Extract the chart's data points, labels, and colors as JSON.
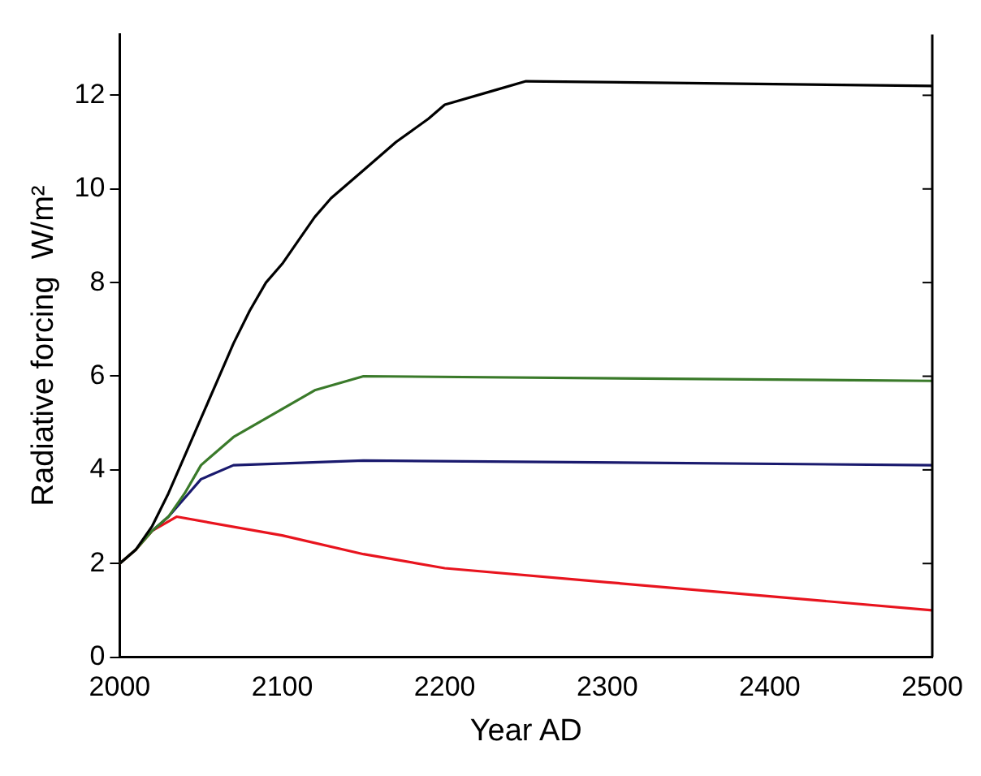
{
  "chart_data": {
    "type": "line",
    "xlabel": "Year AD",
    "ylabel": "Radiative forcing  W/m²",
    "xlim": [
      2000,
      2500
    ],
    "xticks": [
      2000,
      2100,
      2200,
      2300,
      2400,
      2500
    ],
    "ylim": [
      0,
      13.3
    ],
    "yticks": [
      0,
      2,
      4,
      6,
      8,
      10,
      12
    ],
    "grid": false,
    "legend": false,
    "marker": "none",
    "line_style": "solid",
    "series": [
      {
        "color": "#000000",
        "x": [
          2000,
          2010,
          2020,
          2030,
          2040,
          2050,
          2060,
          2070,
          2080,
          2090,
          2100,
          2110,
          2120,
          2130,
          2140,
          2150,
          2170,
          2190,
          2200,
          2230,
          2250,
          2500
        ],
        "values": [
          2,
          2.3,
          2.8,
          3.5,
          4.3,
          5.1,
          5.9,
          6.7,
          7.4,
          8.0,
          8.4,
          8.9,
          9.4,
          9.8,
          10.1,
          10.4,
          11.0,
          11.5,
          11.8,
          12.1,
          12.3,
          12.2
        ]
      },
      {
        "color": "#3a7a2a",
        "x": [
          2000,
          2010,
          2020,
          2030,
          2040,
          2050,
          2070,
          2100,
          2120,
          2150,
          2500
        ],
        "values": [
          2,
          2.3,
          2.7,
          3.0,
          3.5,
          4.1,
          4.7,
          5.3,
          5.7,
          6.0,
          5.9
        ]
      },
      {
        "color": "#1a1a6e",
        "x": [
          2020,
          2030,
          2040,
          2050,
          2070,
          2150,
          2500
        ],
        "values": [
          2.7,
          3.0,
          3.4,
          3.8,
          4.1,
          4.2,
          4.1
        ]
      },
      {
        "color": "#e8141e",
        "x": [
          2000,
          2010,
          2020,
          2035,
          2100,
          2150,
          2200,
          2300,
          2400,
          2500
        ],
        "values": [
          2,
          2.3,
          2.7,
          3.0,
          2.6,
          2.2,
          1.9,
          1.6,
          1.3,
          1.0
        ]
      }
    ]
  }
}
